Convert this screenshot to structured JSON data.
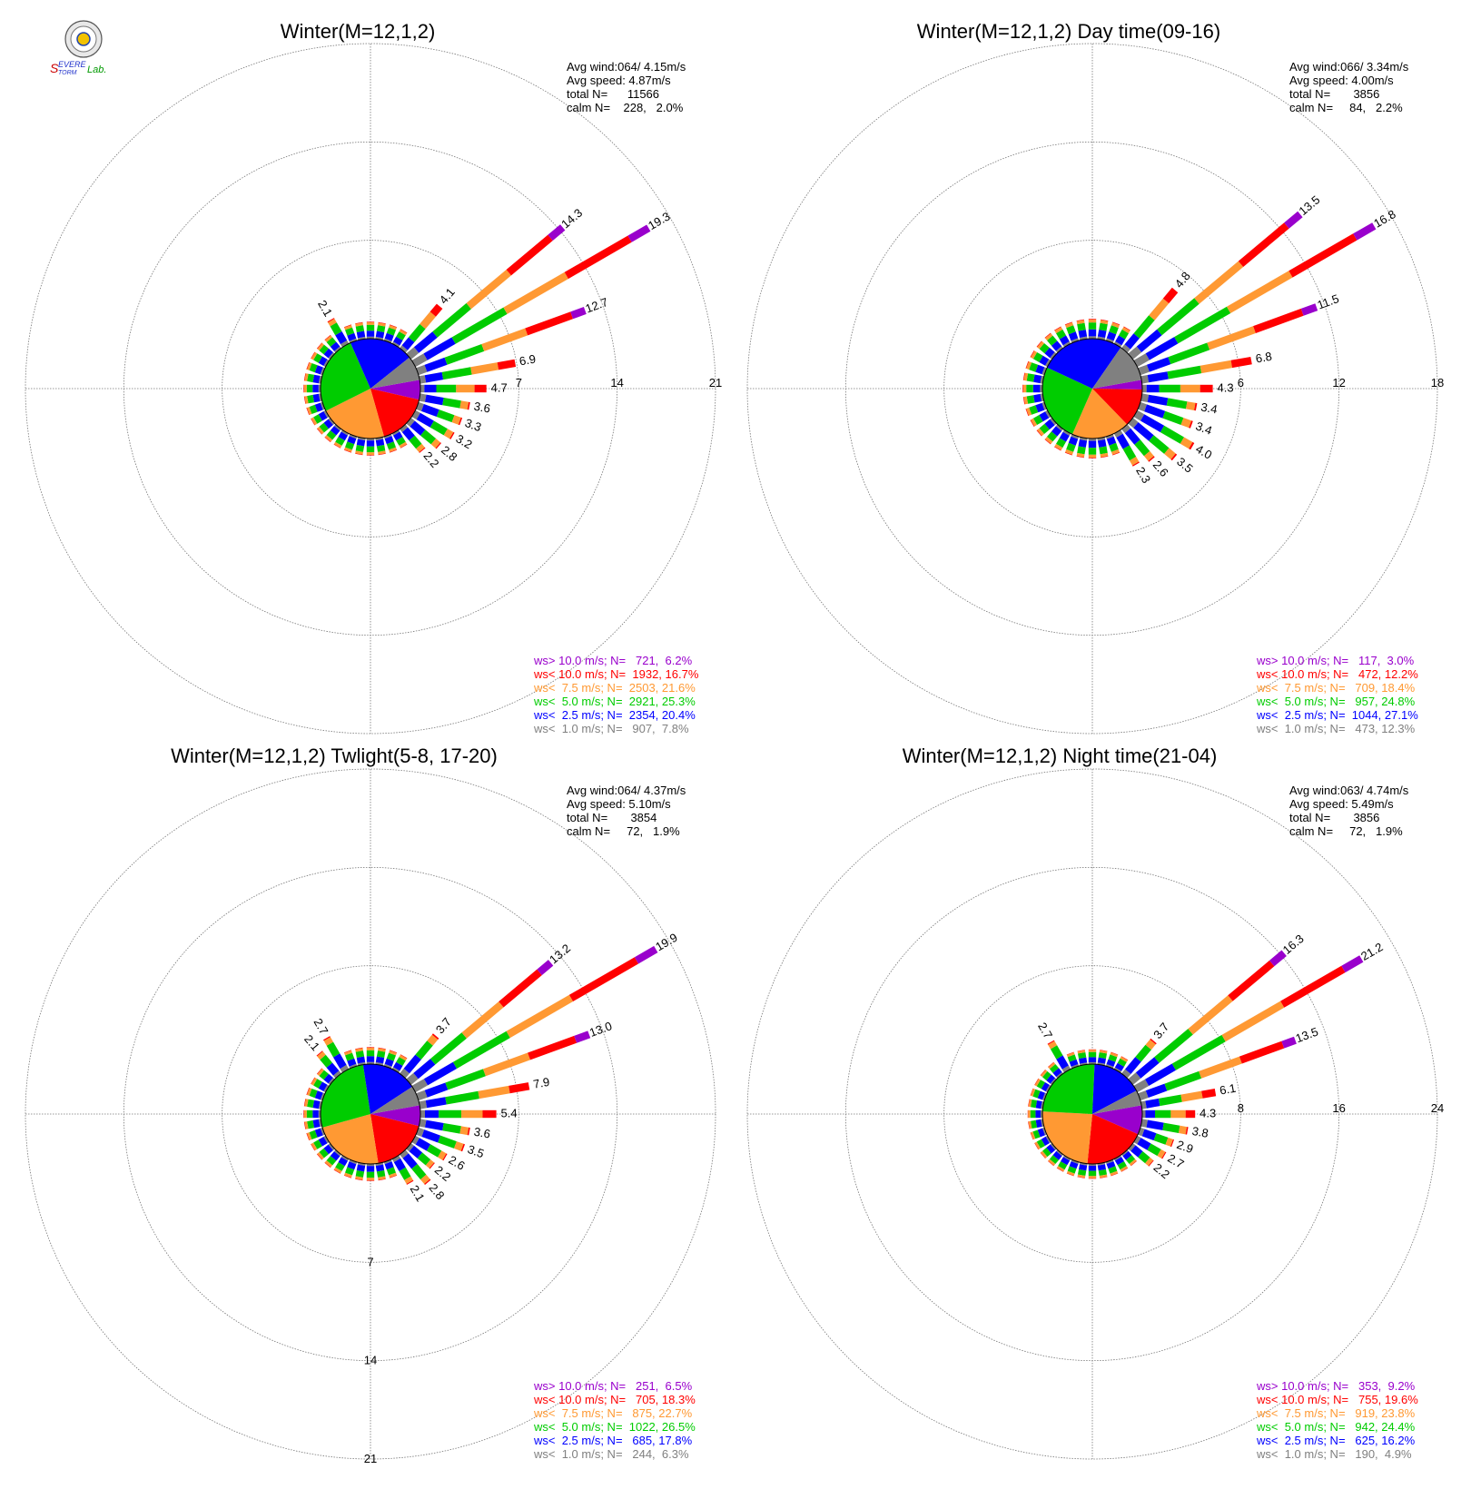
{
  "logo": {
    "text": "Severe Storm Lab."
  },
  "legend_colors": {
    "ws_gt_10": "#9900cc",
    "ws_lt_10": "#ff0000",
    "ws_lt_7_5": "#ff9933",
    "ws_lt_5": "#00cc00",
    "ws_lt_2_5": "#0000ff",
    "ws_lt_1": "#808080"
  },
  "chart_data": [
    {
      "type": "wind_rose",
      "title": "Winter(M=12,1,2)",
      "rmax": 21,
      "ring_labels": [
        "7",
        "14",
        "21"
      ],
      "stats": [
        "Avg wind:064/ 4.15m/s",
        "Avg speed: 4.87m/s",
        "total N=      11566",
        "calm N=    228,   2.0%"
      ],
      "legend": [
        {
          "label": "ws> 10.0 m/s; N=   721,  6.2%",
          "color": "#9900cc"
        },
        {
          "label": "ws< 10.0 m/s; N=  1932, 16.7%",
          "color": "#ff0000"
        },
        {
          "label": "ws<  7.5 m/s; N=  2503, 21.6%",
          "color": "#ff9933"
        },
        {
          "label": "ws<  5.0 m/s; N=  2921, 25.3%",
          "color": "#00cc00"
        },
        {
          "label": "ws<  2.5 m/s; N=  2354, 20.4%",
          "color": "#0000ff"
        },
        {
          "label": "ws<  1.0 m/s; N=   907,  7.8%",
          "color": "#808080"
        }
      ],
      "pie_values": [
        6.2,
        16.7,
        21.6,
        25.3,
        20.4,
        7.8
      ],
      "directions": [
        {
          "dir": 40,
          "total": 4.1,
          "label": "4.1"
        },
        {
          "dir": 50,
          "total": 14.3,
          "label": "14.3"
        },
        {
          "dir": 60,
          "total": 19.3,
          "label": "19.3"
        },
        {
          "dir": 70,
          "total": 12.7,
          "label": "12.7"
        },
        {
          "dir": 80,
          "total": 6.9,
          "label": "6.9"
        },
        {
          "dir": 90,
          "total": 4.7,
          "label": "4.7"
        },
        {
          "dir": 100,
          "total": 3.6,
          "label": "3.6"
        },
        {
          "dir": 110,
          "total": 3.3,
          "label": "3.3"
        },
        {
          "dir": 120,
          "total": 3.2,
          "label": "3.2"
        },
        {
          "dir": 130,
          "total": 2.8,
          "label": "2.8"
        },
        {
          "dir": 140,
          "total": 2.2,
          "label": "2.2"
        },
        {
          "dir": 330,
          "total": 2.1,
          "label": "2.1"
        }
      ]
    },
    {
      "type": "wind_rose",
      "title": "Winter(M=12,1,2) Day time(09-16)",
      "rmax": 18,
      "ring_labels": [
        "6",
        "12",
        "18"
      ],
      "stats": [
        "Avg wind:066/ 3.34m/s",
        "Avg speed: 4.00m/s",
        "total N=       3856",
        "calm N=     84,   2.2%"
      ],
      "legend": [
        {
          "label": "ws> 10.0 m/s; N=   117,  3.0%",
          "color": "#9900cc"
        },
        {
          "label": "ws< 10.0 m/s; N=   472, 12.2%",
          "color": "#ff0000"
        },
        {
          "label": "ws<  7.5 m/s; N=   709, 18.4%",
          "color": "#ff9933"
        },
        {
          "label": "ws<  5.0 m/s; N=   957, 24.8%",
          "color": "#00cc00"
        },
        {
          "label": "ws<  2.5 m/s; N=  1044, 27.1%",
          "color": "#0000ff"
        },
        {
          "label": "ws<  1.0 m/s; N=   473, 12.3%",
          "color": "#808080"
        }
      ],
      "pie_values": [
        3.0,
        12.2,
        18.4,
        24.8,
        27.1,
        12.3
      ],
      "directions": [
        {
          "dir": 40,
          "total": 4.8,
          "label": "4.8"
        },
        {
          "dir": 50,
          "total": 13.5,
          "label": "13.5"
        },
        {
          "dir": 60,
          "total": 16.8,
          "label": "16.8"
        },
        {
          "dir": 70,
          "total": 11.5,
          "label": "11.5"
        },
        {
          "dir": 80,
          "total": 6.8,
          "label": "6.8"
        },
        {
          "dir": 90,
          "total": 4.3,
          "label": "4.3"
        },
        {
          "dir": 100,
          "total": 3.4,
          "label": "3.4"
        },
        {
          "dir": 110,
          "total": 3.4,
          "label": "3.4"
        },
        {
          "dir": 120,
          "total": 4.0,
          "label": "4.0"
        },
        {
          "dir": 130,
          "total": 3.5,
          "label": "3.5"
        },
        {
          "dir": 140,
          "total": 2.6,
          "label": "2.6"
        },
        {
          "dir": 150,
          "total": 2.3,
          "label": "2.3"
        }
      ]
    },
    {
      "type": "wind_rose",
      "title": "Winter(M=12,1,2) Twlight(5-8, 17-20)",
      "rmax": 21,
      "ring_labels": [
        "7",
        "14",
        "21"
      ],
      "stats": [
        "Avg wind:064/ 4.37m/s",
        "Avg speed: 5.10m/s",
        "total N=       3854",
        "calm N=     72,   1.9%"
      ],
      "legend": [
        {
          "label": "ws> 10.0 m/s; N=   251,  6.5%",
          "color": "#9900cc"
        },
        {
          "label": "ws< 10.0 m/s; N=   705, 18.3%",
          "color": "#ff0000"
        },
        {
          "label": "ws<  7.5 m/s; N=   875, 22.7%",
          "color": "#ff9933"
        },
        {
          "label": "ws<  5.0 m/s; N=  1022, 26.5%",
          "color": "#00cc00"
        },
        {
          "label": "ws<  2.5 m/s; N=   685, 17.8%",
          "color": "#0000ff"
        },
        {
          "label": "ws<  1.0 m/s; N=   244,  6.3%",
          "color": "#808080"
        }
      ],
      "pie_values": [
        6.5,
        18.3,
        22.7,
        26.5,
        17.8,
        6.3
      ],
      "directions": [
        {
          "dir": 40,
          "total": 3.7,
          "label": "3.7"
        },
        {
          "dir": 50,
          "total": 13.2,
          "label": "13.2"
        },
        {
          "dir": 60,
          "total": 19.9,
          "label": "19.9"
        },
        {
          "dir": 70,
          "total": 13.0,
          "label": "13.0"
        },
        {
          "dir": 80,
          "total": 7.9,
          "label": "7.9"
        },
        {
          "dir": 90,
          "total": 5.4,
          "label": "5.4"
        },
        {
          "dir": 100,
          "total": 3.6,
          "label": "3.6"
        },
        {
          "dir": 110,
          "total": 3.5,
          "label": "3.5"
        },
        {
          "dir": 120,
          "total": 2.6,
          "label": "2.6"
        },
        {
          "dir": 130,
          "total": 2.2,
          "label": "2.2"
        },
        {
          "dir": 140,
          "total": 2.8,
          "label": "2.8"
        },
        {
          "dir": 150,
          "total": 2.1,
          "label": "2.1"
        },
        {
          "dir": 320,
          "total": 2.1,
          "label": "2.1"
        },
        {
          "dir": 330,
          "total": 2.7,
          "label": "2.7"
        }
      ]
    },
    {
      "type": "wind_rose",
      "title": "Winter(M=12,1,2) Night time(21-04)",
      "rmax": 24,
      "ring_labels": [
        "8",
        "16",
        "24"
      ],
      "stats": [
        "Avg wind:063/ 4.74m/s",
        "Avg speed: 5.49m/s",
        "total N=       3856",
        "calm N=     72,   1.9%"
      ],
      "legend": [
        {
          "label": "ws> 10.0 m/s; N=   353,  9.2%",
          "color": "#9900cc"
        },
        {
          "label": "ws< 10.0 m/s; N=   755, 19.6%",
          "color": "#ff0000"
        },
        {
          "label": "ws<  7.5 m/s; N=   919, 23.8%",
          "color": "#ff9933"
        },
        {
          "label": "ws<  5.0 m/s; N=   942, 24.4%",
          "color": "#00cc00"
        },
        {
          "label": "ws<  2.5 m/s; N=   625, 16.2%",
          "color": "#0000ff"
        },
        {
          "label": "ws<  1.0 m/s; N=   190,  4.9%",
          "color": "#808080"
        }
      ],
      "pie_values": [
        9.2,
        19.6,
        23.8,
        24.4,
        16.2,
        4.9
      ],
      "directions": [
        {
          "dir": 40,
          "total": 3.7,
          "label": "3.7"
        },
        {
          "dir": 50,
          "total": 16.3,
          "label": "16.3"
        },
        {
          "dir": 60,
          "total": 21.2,
          "label": "21.2"
        },
        {
          "dir": 70,
          "total": 13.5,
          "label": "13.5"
        },
        {
          "dir": 80,
          "total": 6.1,
          "label": "6.1"
        },
        {
          "dir": 90,
          "total": 4.3,
          "label": "4.3"
        },
        {
          "dir": 100,
          "total": 3.8,
          "label": "3.8"
        },
        {
          "dir": 110,
          "total": 2.9,
          "label": "2.9"
        },
        {
          "dir": 120,
          "total": 2.7,
          "label": "2.7"
        },
        {
          "dir": 130,
          "total": 2.2,
          "label": "2.2"
        },
        {
          "dir": 330,
          "total": 2.7,
          "label": "2.7"
        }
      ]
    }
  ]
}
